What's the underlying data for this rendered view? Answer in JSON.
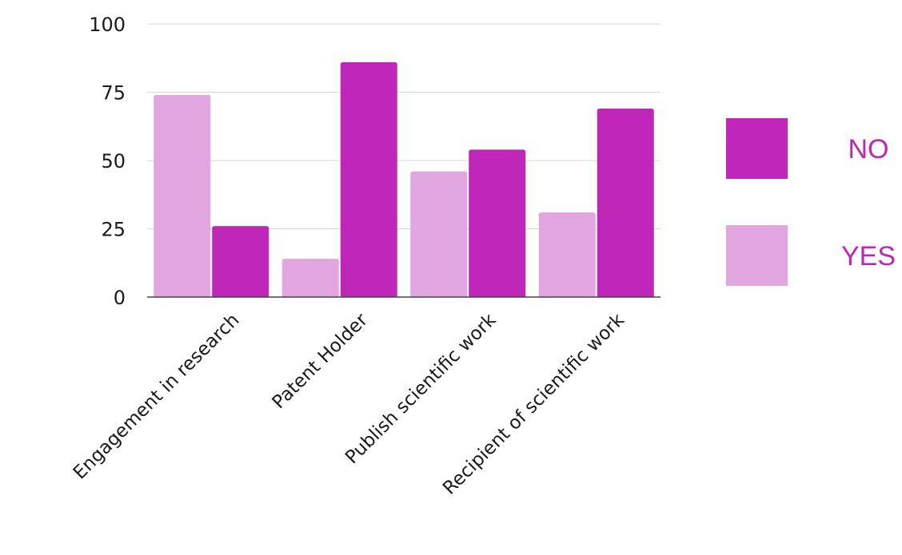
{
  "chart_data": {
    "type": "bar",
    "categories": [
      "Engagement in research",
      "Patent Holder",
      "Publish scientific work",
      "Recipient of scientific work"
    ],
    "series": [
      {
        "name": "YES",
        "values": [
          74,
          14,
          46,
          31
        ],
        "color": "#e1a6df"
      },
      {
        "name": "NO",
        "values": [
          26,
          86,
          54,
          69
        ],
        "color": "#bf25b7"
      }
    ],
    "title": "",
    "xlabel": "",
    "ylabel": "",
    "ylim": [
      0,
      100
    ],
    "yticks": [
      "0",
      "25",
      "50",
      "75",
      "100"
    ],
    "grid": true,
    "legend_position": "right",
    "legend_text_color": "#bf25b7",
    "legend_order": [
      "NO",
      "YES"
    ]
  }
}
